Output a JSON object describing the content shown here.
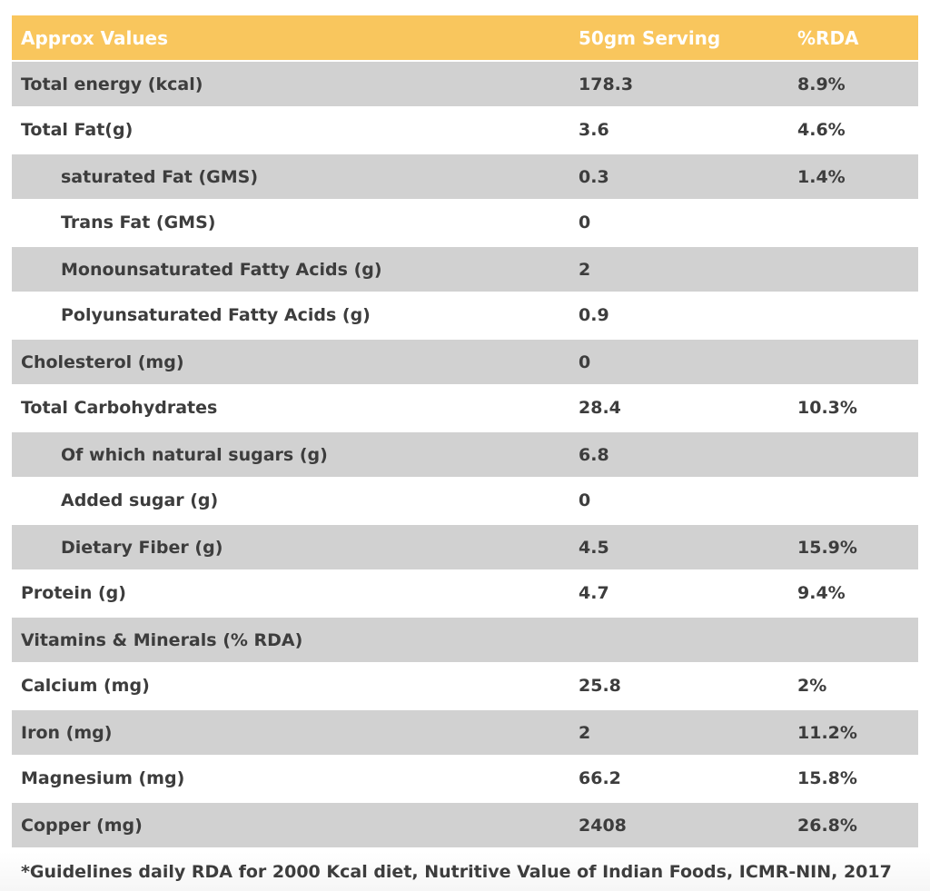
{
  "colors": {
    "header_bg": "#f9c65d",
    "shade_bg": "#d1d1d1",
    "header_text": "#ffffff",
    "body_text": "#3d3d3d"
  },
  "table": {
    "header": {
      "label": "Approx Values",
      "serving": "50gm Serving",
      "rda": "%RDA"
    },
    "rows": [
      {
        "label": "Total energy (kcal)",
        "serving": "178.3",
        "rda": "8.9%"
      },
      {
        "label": "Total Fat(g)",
        "serving": "3.6",
        "rda": "4.6%"
      },
      {
        "label": "saturated Fat (GMS)",
        "serving": "0.3",
        "rda": "1.4%"
      },
      {
        "label": "Trans Fat (GMS)",
        "serving": "0",
        "rda": ""
      },
      {
        "label": "Monounsaturated Fatty Acids (g)",
        "serving": "2",
        "rda": ""
      },
      {
        "label": "Polyunsaturated Fatty Acids (g)",
        "serving": "0.9",
        "rda": ""
      },
      {
        "label": "Cholesterol (mg)",
        "serving": "0",
        "rda": ""
      },
      {
        "label": "Total Carbohydrates",
        "serving": "28.4",
        "rda": "10.3%"
      },
      {
        "label": "Of which natural sugars (g)",
        "serving": "6.8",
        "rda": ""
      },
      {
        "label": "Added sugar (g)",
        "serving": "0",
        "rda": ""
      },
      {
        "label": "Dietary Fiber (g)",
        "serving": "4.5",
        "rda": "15.9%"
      },
      {
        "label": "Protein (g)",
        "serving": "4.7",
        "rda": "9.4%"
      },
      {
        "label": "Vitamins & Minerals (% RDA)",
        "serving": "",
        "rda": ""
      },
      {
        "label": "Calcium (mg)",
        "serving": "25.8",
        "rda": "2%"
      },
      {
        "label": "Iron (mg)",
        "serving": "2",
        "rda": "11.2%"
      },
      {
        "label": "Magnesium (mg)",
        "serving": "66.2",
        "rda": "15.8%"
      },
      {
        "label": "Copper (mg)",
        "serving": "2408",
        "rda": "26.8%"
      }
    ],
    "footnote": "*Guidelines daily RDA for 2000 Kcal diet, Nutritive Value of Indian Foods, ICMR-NIN, 2017"
  }
}
